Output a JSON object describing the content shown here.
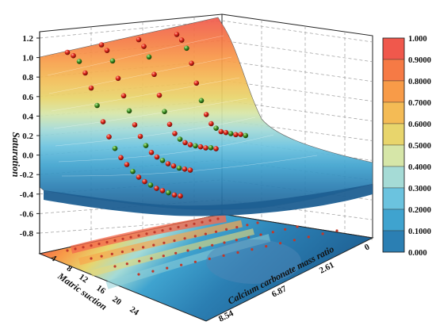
{
  "chart_data": {
    "type": "surface3d",
    "title": "",
    "zlabel": "Saturation",
    "xlabel": "Calcium carbonate mass ratio",
    "ylabel": "Matric suction",
    "z_ticks": [
      "1.2",
      "1.0",
      "0.8",
      "0.6",
      "0.4",
      "0.2",
      "0.0",
      "-0.2",
      "-0.4",
      "-0.6",
      "-0.8"
    ],
    "x_ticks": [
      "0",
      "2.61",
      "6.87",
      "8.54"
    ],
    "y_ticks": [
      "4",
      "8",
      "12",
      "16",
      "20",
      "24"
    ],
    "colorbar": {
      "labels": [
        "1.000",
        "0.9000",
        "0.8000",
        "0.7000",
        "0.6000",
        "0.5000",
        "0.4000",
        "0.3000",
        "0.2000",
        "0.1000",
        "0.000"
      ],
      "colors": [
        "#f0584c",
        "#f67a45",
        "#f89b48",
        "#f4bb55",
        "#e8d56c",
        "#d6e6a8",
        "#a5dbd6",
        "#6bc3df",
        "#3fa3cf",
        "#2b7fb3",
        "#1e5f92"
      ]
    },
    "series": [
      {
        "x": 8.54,
        "suction": [
          1,
          2,
          3,
          4,
          5,
          6,
          7,
          8,
          9,
          10,
          12,
          14,
          16,
          18,
          20,
          22,
          24,
          26,
          28,
          30
        ],
        "saturation": [
          0.98,
          0.95,
          0.9,
          0.8,
          0.67,
          0.52,
          0.38,
          0.25,
          0.15,
          0.07,
          0.01,
          -0.05,
          -0.1,
          -0.14,
          -0.17,
          -0.2,
          -0.22,
          -0.24,
          -0.26,
          -0.27
        ]
      },
      {
        "x": 6.87,
        "suction": [
          1,
          2,
          3,
          4,
          5,
          6,
          7,
          8,
          9,
          10,
          12,
          14,
          16,
          18,
          20,
          22,
          24
        ],
        "saturation": [
          0.99,
          0.94,
          0.85,
          0.7,
          0.55,
          0.42,
          0.3,
          0.2,
          0.12,
          0.06,
          0.02,
          -0.01,
          -0.04,
          -0.06,
          -0.08,
          -0.09,
          -0.1
        ]
      },
      {
        "x": 2.61,
        "suction": [
          1,
          2,
          3,
          4,
          5,
          6,
          7,
          8,
          9,
          10,
          12,
          14,
          16,
          18,
          20,
          22
        ],
        "saturation": [
          0.98,
          0.92,
          0.83,
          0.68,
          0.5,
          0.36,
          0.25,
          0.17,
          0.12,
          0.09,
          0.07,
          0.06,
          0.05,
          0.04,
          0.04,
          0.03
        ]
      },
      {
        "x": 0,
        "suction": [
          1,
          2,
          3,
          4,
          5,
          6,
          7,
          8,
          9,
          10,
          12,
          14,
          16,
          18,
          20
        ],
        "saturation": [
          0.97,
          0.92,
          0.85,
          0.72,
          0.55,
          0.4,
          0.28,
          0.2,
          0.16,
          0.13,
          0.12,
          0.11,
          0.1,
          0.1,
          0.09
        ]
      }
    ]
  }
}
